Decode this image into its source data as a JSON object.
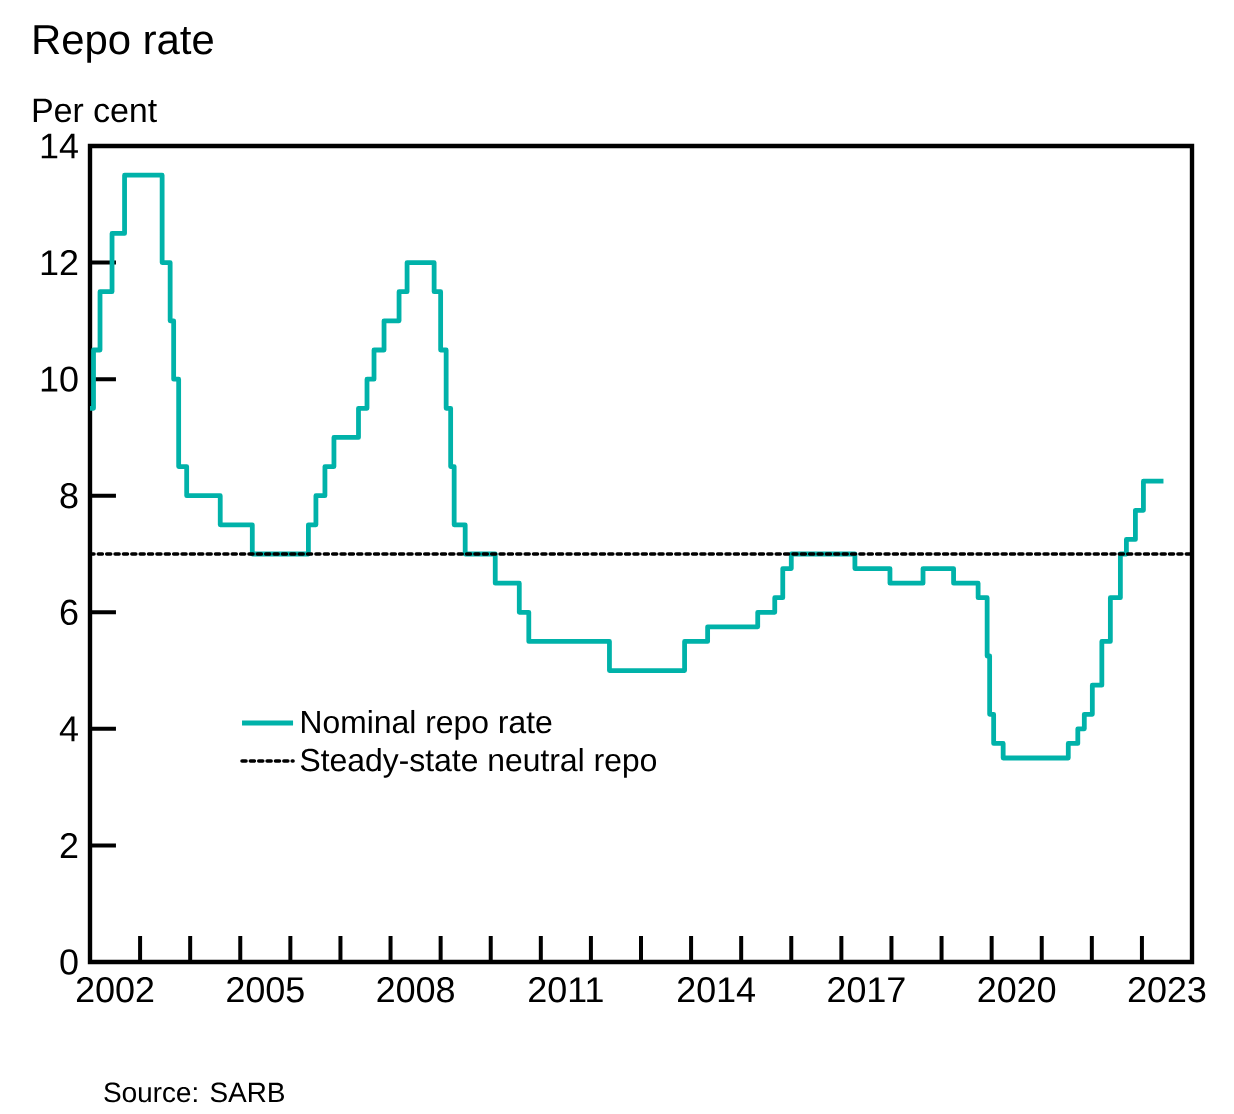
{
  "chart_data": {
    "type": "step",
    "title": "Repo rate",
    "ylabel": "Per cent",
    "x": [
      2002.0,
      2002.07,
      2002.2,
      2002.44,
      2002.69,
      2003.44,
      2003.6,
      2003.67,
      2003.77,
      2003.93,
      2004.6,
      2005.24,
      2006.36,
      2006.51,
      2006.69,
      2006.87,
      2007.36,
      2007.53,
      2007.67,
      2007.87,
      2008.17,
      2008.33,
      2008.87,
      2009.0,
      2009.11,
      2009.2,
      2009.27,
      2009.49,
      2010.09,
      2010.57,
      2010.76,
      2012.37,
      2013.87,
      2014.33,
      2015.33,
      2015.67,
      2015.83,
      2016.0,
      2017.27,
      2017.97,
      2018.63,
      2019.24,
      2019.73,
      2019.91,
      2019.96,
      2020.04,
      2020.23,
      2021.53,
      2021.72,
      2021.85,
      2022.01,
      2022.2,
      2022.37,
      2022.57,
      2022.69,
      2022.87,
      2023.03,
      2023.43
    ],
    "series": [
      {
        "name": "Nominal repo rate",
        "color": "#00b2a9",
        "values": [
          9.5,
          10.5,
          11.5,
          12.5,
          13.5,
          12,
          11,
          10,
          8.5,
          8,
          7.5,
          7,
          7.5,
          8,
          8.5,
          9,
          9.5,
          10,
          10.5,
          11,
          11.5,
          12,
          11.5,
          10.5,
          9.5,
          8.5,
          7.5,
          7,
          6.5,
          6,
          5.5,
          5,
          5.5,
          5.75,
          6,
          6.25,
          6.75,
          7,
          6.75,
          6.5,
          6.75,
          6.5,
          6.25,
          5.25,
          4.25,
          3.75,
          3.5,
          3.75,
          4,
          4.25,
          4.75,
          5.5,
          6.25,
          7,
          7.25,
          7.75,
          8.25,
          8.25
        ]
      }
    ],
    "xlim": [
      2002,
      2024
    ],
    "xticks": [
      {
        "value": 2002.5,
        "label": "2002"
      },
      {
        "value": 2005.5,
        "label": "2005"
      },
      {
        "value": 2008.5,
        "label": "2008"
      },
      {
        "value": 2011.5,
        "label": "2011"
      },
      {
        "value": 2014.5,
        "label": "2014"
      },
      {
        "value": 2017.5,
        "label": "2017"
      },
      {
        "value": 2020.5,
        "label": "2020"
      },
      {
        "value": 2023.5,
        "label": "2023"
      },
      {
        "value": 2003,
        "label": null
      },
      {
        "value": 2004,
        "label": null
      },
      {
        "value": 2005,
        "label": null
      },
      {
        "value": 2006,
        "label": null
      },
      {
        "value": 2007,
        "label": null
      },
      {
        "value": 2008,
        "label": null
      },
      {
        "value": 2009,
        "label": null
      },
      {
        "value": 2010,
        "label": null
      },
      {
        "value": 2011,
        "label": null
      },
      {
        "value": 2012,
        "label": null
      },
      {
        "value": 2013,
        "label": null
      },
      {
        "value": 2014,
        "label": null
      },
      {
        "value": 2015,
        "label": null
      },
      {
        "value": 2016,
        "label": null
      },
      {
        "value": 2017,
        "label": null
      },
      {
        "value": 2018,
        "label": null
      },
      {
        "value": 2019,
        "label": null
      },
      {
        "value": 2020,
        "label": null
      },
      {
        "value": 2021,
        "label": null
      },
      {
        "value": 2022,
        "label": null
      },
      {
        "value": 2023,
        "label": null
      }
    ],
    "ylim": [
      0,
      14
    ],
    "yticks": [
      0,
      2,
      4,
      6,
      8,
      10,
      12,
      14
    ],
    "ref_lines": [
      {
        "axis": "y",
        "value": 7,
        "label": "Steady-state neutral repo",
        "color": "#000000",
        "line_style": "dotted"
      }
    ],
    "legend": "bottom left",
    "annotations": [
      "Source: SARB"
    ]
  }
}
